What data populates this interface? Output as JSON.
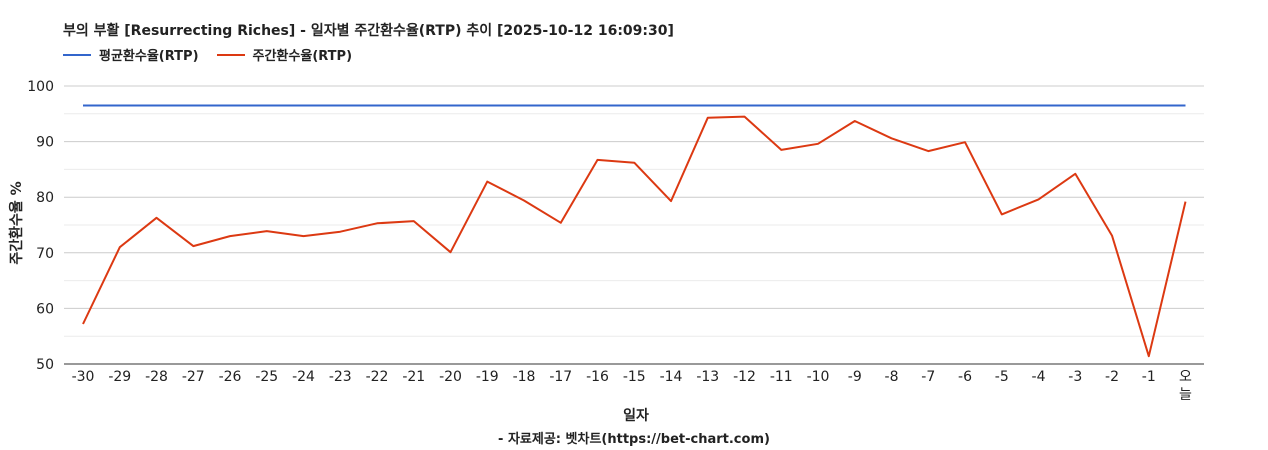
{
  "title": "부의 부활 [Resurrecting Riches] - 일자별 주간환수율(RTP) 추이 [2025-10-12 16:09:30]",
  "footer": "- 자료제공: 벳차트(https://bet-chart.com)",
  "colors": {
    "avg": "#3366cc",
    "weekly": "#dc3912",
    "grid": "#cccccc",
    "minor_grid": "#ebebeb"
  },
  "chart_data": {
    "type": "line",
    "xlabel": "일자",
    "ylabel": "주간환수율 %",
    "ylim": [
      50,
      100
    ],
    "yticks": [
      50,
      60,
      70,
      80,
      90,
      100
    ],
    "grid": true,
    "legend_position": "top-left",
    "categories": [
      "-30",
      "-29",
      "-28",
      "-27",
      "-26",
      "-25",
      "-24",
      "-23",
      "-22",
      "-21",
      "-20",
      "-19",
      "-18",
      "-17",
      "-16",
      "-15",
      "-14",
      "-13",
      "-12",
      "-11",
      "-10",
      "-9",
      "-8",
      "-7",
      "-6",
      "-5",
      "-4",
      "-3",
      "-2",
      "-1",
      "오늘"
    ],
    "series": [
      {
        "name": "평균환수율(RTP)",
        "color": "#3366cc",
        "values": [
          96.5,
          96.5,
          96.5,
          96.5,
          96.5,
          96.5,
          96.5,
          96.5,
          96.5,
          96.5,
          96.5,
          96.5,
          96.5,
          96.5,
          96.5,
          96.5,
          96.5,
          96.5,
          96.5,
          96.5,
          96.5,
          96.5,
          96.5,
          96.5,
          96.5,
          96.5,
          96.5,
          96.5,
          96.5,
          96.5,
          96.5
        ]
      },
      {
        "name": "주간환수율(RTP)",
        "color": "#dc3912",
        "values": [
          57.2,
          71.0,
          76.3,
          71.2,
          73.0,
          73.9,
          73.0,
          73.8,
          75.3,
          75.7,
          70.1,
          82.8,
          79.4,
          75.4,
          86.7,
          86.2,
          79.3,
          94.3,
          94.5,
          88.5,
          89.6,
          93.7,
          90.6,
          88.3,
          89.9,
          76.9,
          79.6,
          84.2,
          73.1,
          51.4,
          79.2
        ]
      }
    ]
  }
}
